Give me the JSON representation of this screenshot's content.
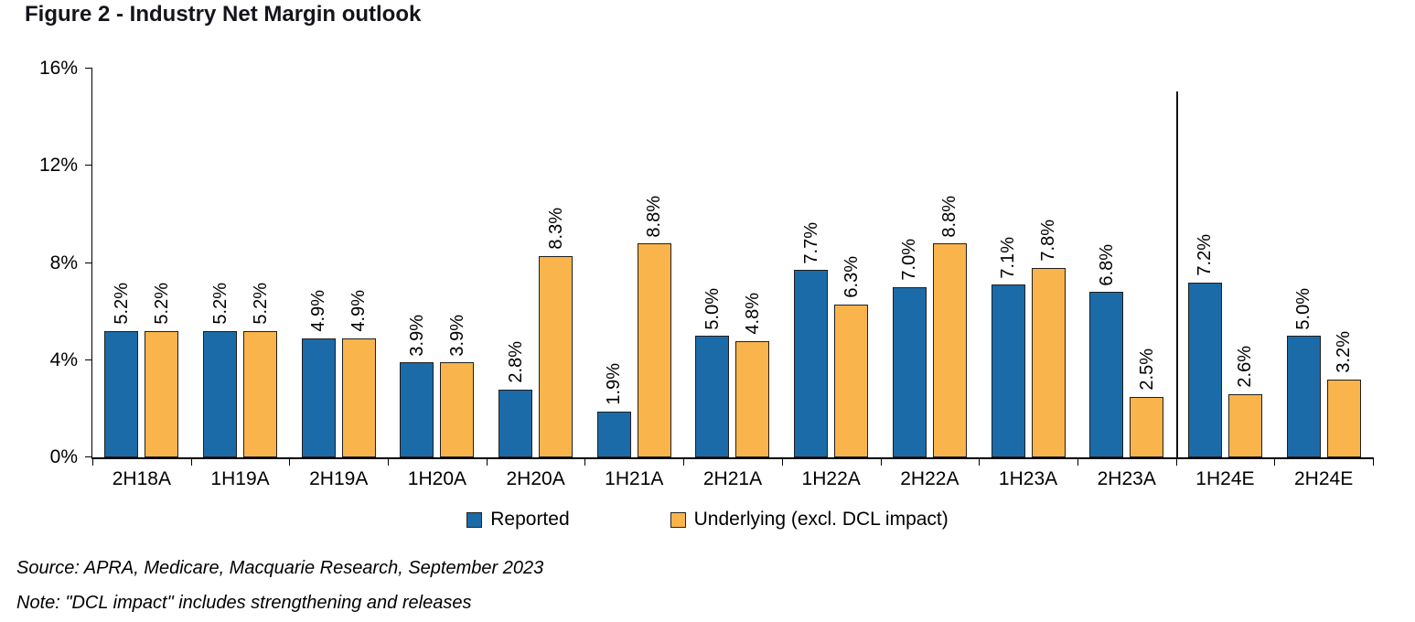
{
  "title": "Figure 2 - Industry Net Margin outlook",
  "source": "Source: APRA, Medicare, Macquarie Research, September 2023",
  "note": "Note: \"DCL impact\" includes strengthening and releases",
  "colors": {
    "reported": "#1B6BA8",
    "underlying": "#F9B44B",
    "bar_border": "#1f1f1f",
    "axis": "#000000"
  },
  "chart_data": {
    "type": "bar",
    "title": "Figure 2 - Industry Net Margin outlook",
    "xlabel": "",
    "ylabel": "",
    "ylim": [
      0,
      16
    ],
    "yticks": [
      0,
      4,
      8,
      12,
      16
    ],
    "ytick_labels": [
      "0%",
      "4%",
      "8%",
      "12%",
      "16%"
    ],
    "grid": false,
    "legend_position": "bottom",
    "value_label_format": "rotated 90deg, one decimal, percent",
    "categories": [
      "2H18A",
      "1H19A",
      "2H19A",
      "1H20A",
      "2H20A",
      "1H21A",
      "2H21A",
      "1H22A",
      "2H22A",
      "1H23A",
      "2H23A",
      "1H24E",
      "2H24E"
    ],
    "separator_after_index": 11,
    "separator_meaning": "divides actuals from estimates",
    "series": [
      {
        "name": "Reported",
        "color": "#1B6BA8",
        "values": [
          5.2,
          5.2,
          4.9,
          3.9,
          2.8,
          1.9,
          5.0,
          7.7,
          7.0,
          7.1,
          6.8,
          7.2,
          5.0
        ]
      },
      {
        "name": "Underlying (excl. DCL impact)",
        "color": "#F9B44B",
        "values": [
          5.2,
          5.2,
          4.9,
          3.9,
          8.3,
          8.8,
          4.8,
          6.3,
          8.8,
          7.8,
          2.5,
          2.6,
          3.2
        ]
      }
    ]
  }
}
